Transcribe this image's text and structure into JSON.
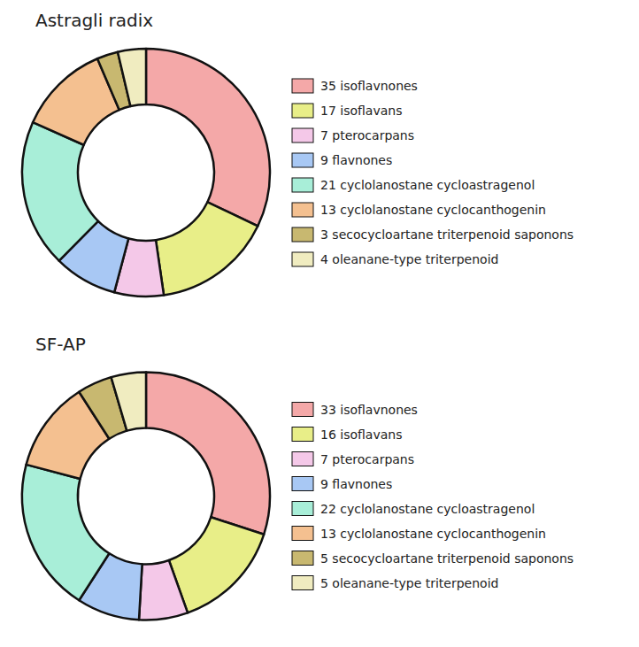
{
  "chart_data": [
    {
      "type": "donut",
      "title": "Astragli radix",
      "categories": [
        "35 isoflavnones",
        "17 isoflavans",
        "7 pterocarpans",
        "9 flavnones",
        "21 cyclolanostane cycloastragenol",
        "13 cyclolanostane cyclocanthogenin",
        "3 secocycloartane triterpenoid saponons",
        "4 oleanane-type triterpenoid"
      ],
      "values": [
        35,
        17,
        7,
        9,
        21,
        13,
        3,
        4
      ],
      "colors": [
        "#F4A8A8",
        "#E8EE88",
        "#F4C8E8",
        "#A8C8F4",
        "#A8EED8",
        "#F4C090",
        "#C8B870",
        "#F0ECC0"
      ],
      "legend": "right"
    },
    {
      "type": "donut",
      "title": "SF-AP",
      "categories": [
        "33 isoflavnones",
        "16 isoflavans",
        "7 pterocarpans",
        "9 flavnones",
        "22 cyclolanostane cycloastragenol",
        "13 cyclolanostane cyclocanthogenin",
        "5 secocycloartane triterpenoid saponons",
        "5 oleanane-type triterpenoid"
      ],
      "values": [
        33,
        16,
        7,
        9,
        22,
        13,
        5,
        5
      ],
      "colors": [
        "#F4A8A8",
        "#E8EE88",
        "#F4C8E8",
        "#A8C8F4",
        "#A8EED8",
        "#F4C090",
        "#C8B870",
        "#F0ECC0"
      ],
      "legend": "right"
    }
  ]
}
